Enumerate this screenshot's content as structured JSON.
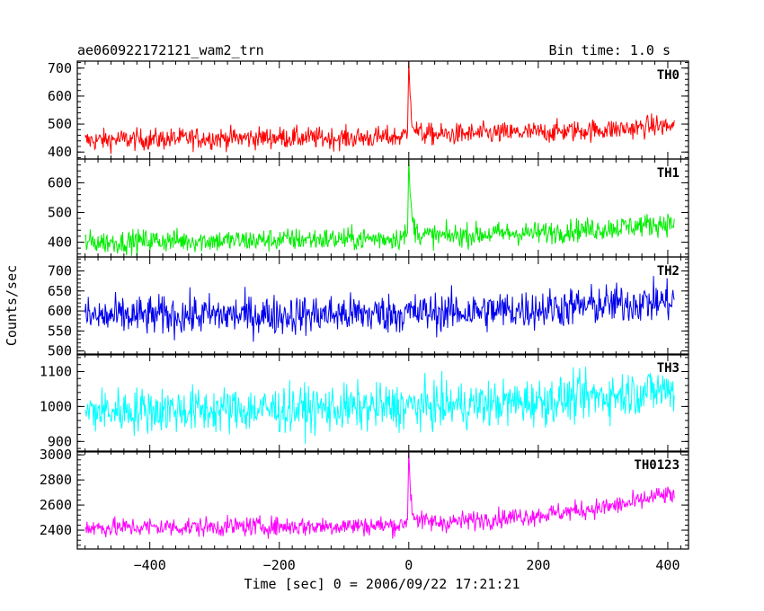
{
  "header": {
    "title": "ae060922172121_wam2_trn",
    "bin_time": "Bin time: 1.0 s"
  },
  "xlabel": "Time [sec] 0 = 2006/09/22 17:21:21",
  "ylabel": "Counts/sec",
  "chart_data": {
    "type": "line",
    "title": "ae060922172121_wam2_trn",
    "subtitle": "Bin time: 1.0 s",
    "xlabel": "Time [sec] 0 = 2006/09/22 17:21:21",
    "ylabel": "Counts/sec",
    "xlim": [
      -512,
      432
    ],
    "x_ticks": [
      -400,
      -200,
      0,
      200,
      400
    ],
    "grid": false,
    "legend": "none",
    "panels": [
      {
        "name": "TH0",
        "color": "#ff0000",
        "ylim": [
          375,
          725
        ],
        "y_ticks": [
          400,
          500,
          600,
          700
        ],
        "x": [
          -500,
          -450,
          -400,
          -350,
          -300,
          -250,
          -200,
          -150,
          -100,
          -50,
          -10,
          -2,
          0,
          2,
          5,
          10,
          20,
          50,
          100,
          150,
          200,
          250,
          300,
          350,
          380,
          410
        ],
        "values": [
          440,
          445,
          445,
          448,
          450,
          450,
          452,
          450,
          450,
          452,
          455,
          470,
          725,
          600,
          520,
          480,
          465,
          462,
          465,
          468,
          470,
          475,
          480,
          485,
          495,
          490
        ],
        "noise": 35
      },
      {
        "name": "TH1",
        "color": "#00ee00",
        "ylim": [
          350,
          680
        ],
        "y_ticks": [
          400,
          500,
          600
        ],
        "x": [
          -500,
          -450,
          -400,
          -350,
          -300,
          -250,
          -200,
          -150,
          -100,
          -50,
          -10,
          -2,
          0,
          2,
          5,
          10,
          20,
          50,
          100,
          150,
          200,
          250,
          300,
          350,
          380,
          410
        ],
        "values": [
          400,
          400,
          405,
          405,
          405,
          405,
          408,
          410,
          410,
          412,
          415,
          430,
          680,
          560,
          480,
          440,
          425,
          420,
          425,
          430,
          430,
          440,
          445,
          455,
          460,
          465
        ],
        "noise": 35
      },
      {
        "name": "TH2",
        "color": "#0000ee",
        "ylim": [
          490,
          735
        ],
        "y_ticks": [
          500,
          550,
          600,
          650,
          700
        ],
        "x": [
          -500,
          -400,
          -300,
          -200,
          -100,
          0,
          100,
          200,
          300,
          350,
          410
        ],
        "values": [
          585,
          588,
          590,
          590,
          592,
          595,
          598,
          605,
          615,
          620,
          625
        ],
        "noise": 45
      },
      {
        "name": "TH3",
        "color": "#00ffff",
        "ylim": [
          870,
          1150
        ],
        "y_ticks": [
          900,
          1000,
          1100
        ],
        "x": [
          -500,
          -400,
          -300,
          -200,
          -100,
          0,
          100,
          200,
          300,
          350,
          410
        ],
        "values": [
          985,
          990,
          990,
          992,
          995,
          1000,
          1005,
          1015,
          1030,
          1040,
          1050
        ],
        "noise": 60
      },
      {
        "name": "TH0123",
        "color": "#ff00ff",
        "ylim": [
          2250,
          3030
        ],
        "y_ticks": [
          2400,
          2600,
          2800,
          3000
        ],
        "x": [
          -500,
          -450,
          -400,
          -350,
          -300,
          -250,
          -200,
          -150,
          -100,
          -50,
          -10,
          -2,
          0,
          2,
          5,
          10,
          20,
          50,
          100,
          150,
          200,
          250,
          300,
          350,
          380,
          410
        ],
        "values": [
          2420,
          2420,
          2425,
          2425,
          2425,
          2430,
          2430,
          2430,
          2435,
          2435,
          2440,
          2480,
          3030,
          2760,
          2560,
          2500,
          2470,
          2460,
          2480,
          2500,
          2520,
          2550,
          2580,
          2620,
          2670,
          2680
        ],
        "noise": 70
      }
    ]
  }
}
